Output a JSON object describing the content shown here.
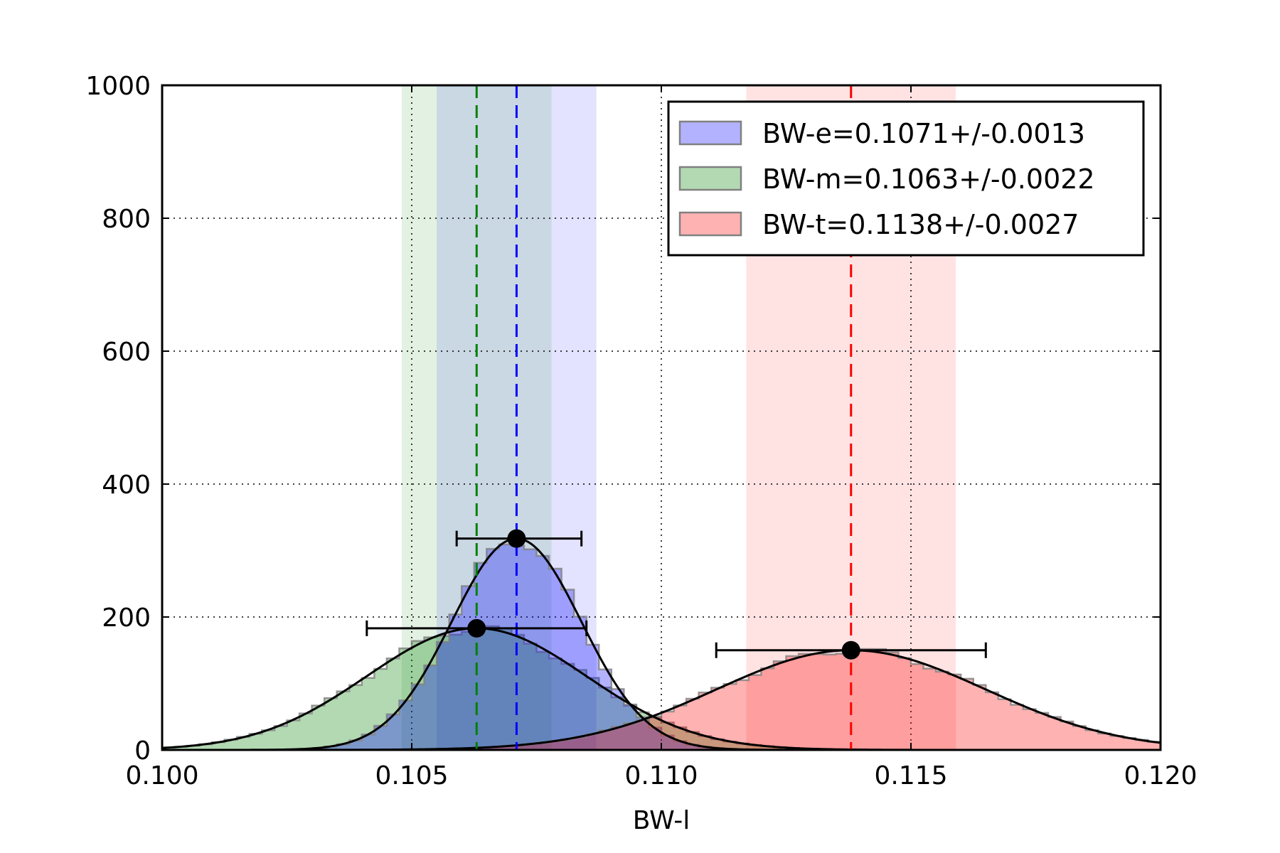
{
  "chart_data": {
    "type": "histogram",
    "xlabel": "BW-l",
    "ylabel": "",
    "xlim": [
      0.1,
      0.12
    ],
    "ylim": [
      0,
      1000
    ],
    "xticks": [
      "0.100",
      "0.105",
      "0.110",
      "0.115",
      "0.120"
    ],
    "yticks": [
      "0",
      "200",
      "400",
      "600",
      "800",
      "1000"
    ],
    "grid": true,
    "legend_position": "top-right",
    "series": [
      {
        "name": "BW-e=0.1071+/-0.0013",
        "color": "#0000ff",
        "mean": 0.1071,
        "sigma": 0.0013,
        "peak": 318,
        "band": [
          0.1055,
          0.1087
        ],
        "errorbar": [
          0.1059,
          0.1084
        ]
      },
      {
        "name": "BW-m=0.1063+/-0.0022",
        "color": "#008000",
        "mean": 0.1063,
        "sigma": 0.0022,
        "peak": 183,
        "band": [
          0.1048,
          0.1078
        ],
        "errorbar": [
          0.1041,
          0.1085
        ]
      },
      {
        "name": "BW-t=0.1138+/-0.0027",
        "color": "#ff0000",
        "mean": 0.1138,
        "sigma": 0.0027,
        "peak": 150,
        "band": [
          0.1117,
          0.1159
        ],
        "errorbar": [
          0.1111,
          0.1165
        ]
      }
    ]
  }
}
